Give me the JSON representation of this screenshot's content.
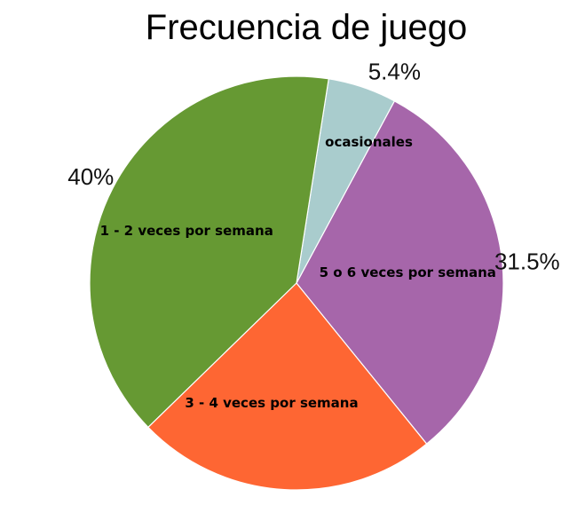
{
  "chart_data": {
    "type": "pie",
    "title": "Frecuencia de juego",
    "slices": [
      {
        "label": "5 o 6 veces por semana",
        "value": 31.5,
        "value_label": "31.5%",
        "color": "#a666aa"
      },
      {
        "label": "ocasionales",
        "value": 5.4,
        "value_label": "5.4%",
        "color": "#a9cccd"
      },
      {
        "label": "1 - 2 veces por semana",
        "value": 40,
        "value_label": "40%",
        "color": "#669933"
      },
      {
        "label": "3 - 4 veces por semana",
        "value": 23.7,
        "value_label": "23.7%",
        "color": "#fe6633"
      }
    ],
    "legend": "none"
  }
}
